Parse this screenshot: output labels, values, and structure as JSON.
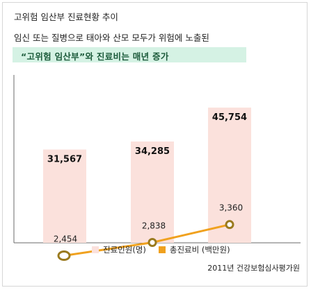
{
  "header": {
    "title": "고위험 임산부 진료현황 추이",
    "subtitle": "임신 또는 질병으로 태아와 산모 모두가 위험에 노출된",
    "highlight": "“고위험 임산부”와 진료비는 매년 증가"
  },
  "source": "2011년 건강보험심사평가원",
  "colors": {
    "bar": "#fbe1dc",
    "line": "#f0a11e",
    "marker_fill": "#ffffff",
    "marker_stroke": "#9a7a1e",
    "highlight_bg": "#d5f2e4",
    "highlight_text": "#1b5a3a"
  },
  "chart_data": {
    "type": "bar",
    "categories": [
      "",
      "",
      ""
    ],
    "series": [
      {
        "name": "진료인원(명)",
        "type": "bar",
        "values": [
          31567,
          34285,
          45754
        ],
        "labels": [
          "31,567",
          "34,285",
          "45,754"
        ]
      },
      {
        "name": "총진료비 (백만원)",
        "type": "line",
        "values": [
          2454,
          2838,
          3360
        ],
        "labels": [
          "2,454",
          "2,838",
          "3,360"
        ]
      }
    ],
    "legend_position": "bottom",
    "grid": false
  }
}
